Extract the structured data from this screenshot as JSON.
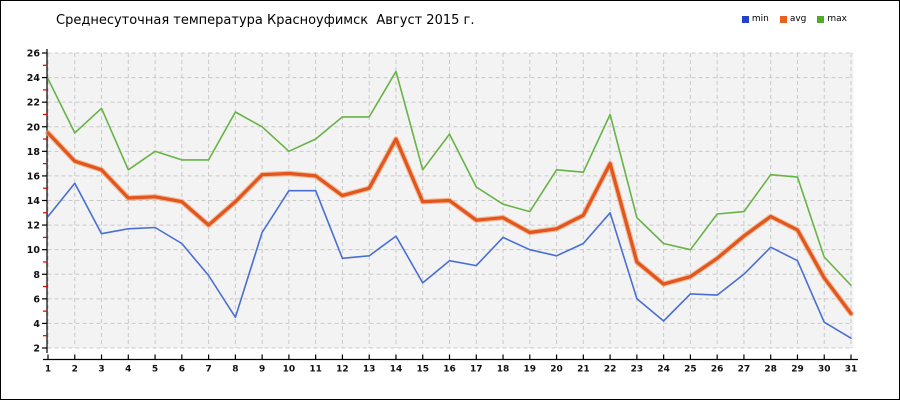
{
  "title": "Среднесуточная температура Красноуфимск  Август 2015 г.",
  "legend": {
    "position": "top-right",
    "items": [
      {
        "label": "min",
        "color": "#2442cc"
      },
      {
        "label": "avg",
        "color": "#e8611f"
      },
      {
        "label": "max",
        "color": "#54ab2b"
      }
    ]
  },
  "chart_data": {
    "type": "line",
    "title": "Среднесуточная температура Красноуфимск  Август 2015 г.",
    "xlabel": "",
    "ylabel": "",
    "x": [
      1,
      2,
      3,
      4,
      5,
      6,
      7,
      8,
      9,
      10,
      11,
      12,
      13,
      14,
      15,
      16,
      17,
      18,
      19,
      20,
      21,
      22,
      23,
      24,
      25,
      26,
      27,
      28,
      29,
      30,
      31
    ],
    "series": [
      {
        "name": "min",
        "color": "#4a6fd4",
        "width": 1.6,
        "values": [
          12.7,
          15.4,
          11.3,
          11.7,
          11.8,
          10.5,
          7.9,
          4.5,
          11.4,
          14.8,
          14.8,
          9.3,
          9.5,
          11.1,
          7.3,
          9.1,
          8.7,
          11.0,
          10.0,
          9.5,
          10.5,
          13.0,
          6.0,
          4.2,
          6.4,
          6.3,
          8.0,
          10.2,
          9.1,
          4.1,
          2.8
        ]
      },
      {
        "name": "avg",
        "color": "#e2551c",
        "width": 3.2,
        "halo": "#f2a476",
        "values": [
          19.5,
          17.2,
          16.5,
          14.2,
          14.3,
          13.9,
          12.0,
          13.9,
          16.1,
          16.2,
          16.0,
          14.4,
          15.0,
          19.0,
          13.9,
          14.0,
          12.4,
          12.6,
          11.4,
          11.7,
          12.8,
          17.0,
          9.0,
          7.2,
          7.8,
          9.3,
          11.1,
          12.7,
          11.6,
          7.7,
          4.8
        ]
      },
      {
        "name": "max",
        "color": "#67b346",
        "width": 1.6,
        "values": [
          23.9,
          19.5,
          21.5,
          16.5,
          18.0,
          17.3,
          17.3,
          21.2,
          20.0,
          18.0,
          19.0,
          20.8,
          20.8,
          24.5,
          16.5,
          19.4,
          15.1,
          13.7,
          13.1,
          16.5,
          16.3,
          21.0,
          12.6,
          10.5,
          10.0,
          12.9,
          13.1,
          16.1,
          15.9,
          9.4,
          7.1
        ]
      }
    ],
    "ylim": [
      2,
      26
    ],
    "ytick_step": 2,
    "grid": "dashed",
    "plot_bg": "#f3f3f3",
    "grid_color": "#c9c9c9",
    "axis_color": "#000000",
    "minor_tick_color": "#d40000",
    "tick_label_color": "#111111"
  }
}
